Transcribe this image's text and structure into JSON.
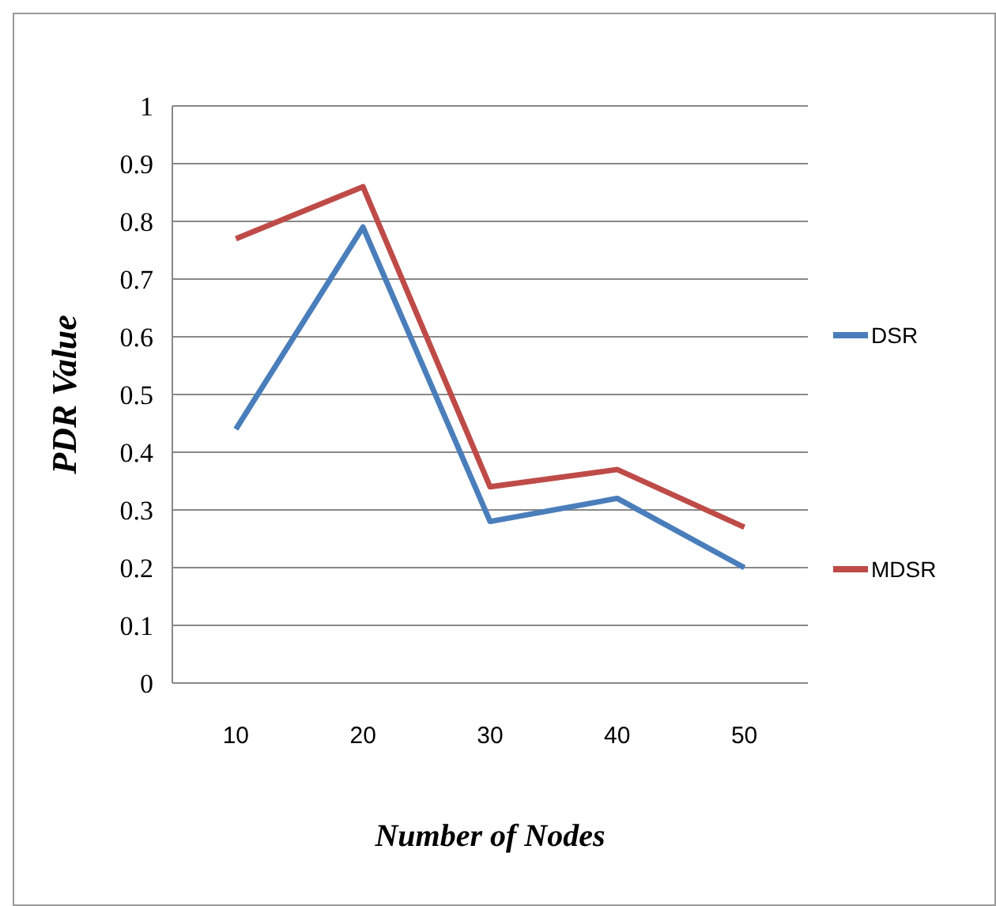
{
  "chart_data": {
    "type": "line",
    "xlabel": "Number of Nodes",
    "ylabel": "PDR Value",
    "categories": [
      "10",
      "20",
      "30",
      "40",
      "50"
    ],
    "series": [
      {
        "name": "DSR",
        "color": "#4a7ebb",
        "values": [
          0.44,
          0.79,
          0.28,
          0.32,
          0.2
        ]
      },
      {
        "name": "MDSR",
        "color": "#be4b48",
        "values": [
          0.77,
          0.86,
          0.34,
          0.37,
          0.27
        ]
      }
    ],
    "ylim": [
      0,
      1
    ],
    "yticks": [
      0,
      0.1,
      0.2,
      0.3,
      0.4,
      0.5,
      0.6,
      0.7,
      0.8,
      0.9,
      1
    ],
    "grid": "y",
    "legend": "right",
    "marker": "none",
    "line_style": "solid"
  }
}
